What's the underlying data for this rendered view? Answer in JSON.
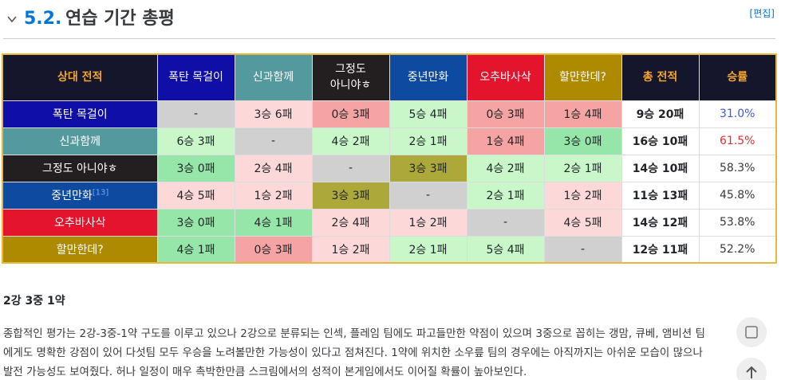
{
  "section": {
    "number": "5.2.",
    "title": "연습 기간 총평",
    "edit_label": "[편집]"
  },
  "table": {
    "headers": [
      {
        "label": "상대 전적",
        "bg": "#15152b",
        "fg": "#f3a72b",
        "bold": true
      },
      {
        "label": "폭탄 목걸이",
        "bg": "#0f0fa8",
        "fg": "#ffffff"
      },
      {
        "label": "신과함께",
        "bg": "#54999d",
        "fg": "#ffffff"
      },
      {
        "label": "그정도\n아니야ㅎ",
        "bg": "#231f20",
        "fg": "#ffffff"
      },
      {
        "label": "중년만화",
        "bg": "#0e4ba0",
        "fg": "#ffffff"
      },
      {
        "label": "오추바사삭",
        "bg": "#e3142c",
        "fg": "#ffffff"
      },
      {
        "label": "할만한데?",
        "bg": "#ad8a00",
        "fg": "#ffffff"
      },
      {
        "label": "총 전적",
        "bg": "#15152b",
        "fg": "#f3a72b",
        "bold": true
      },
      {
        "label": "승률",
        "bg": "#15152b",
        "fg": "#f3a72b",
        "bold": true
      }
    ],
    "rows": [
      {
        "team": "폭탄 목걸이",
        "team_bg": "#0f0fa8",
        "cells": [
          {
            "text": "-",
            "bg": "#d0d0d0"
          },
          {
            "text": "3승 6패",
            "bg": "#fdd8d8"
          },
          {
            "text": "0승 3패",
            "bg": "#f5a3a3"
          },
          {
            "text": "5승 4패",
            "bg": "#c9f7c9"
          },
          {
            "text": "0승 3패",
            "bg": "#f5a3a3"
          },
          {
            "text": "1승 4패",
            "bg": "#f5a3a3"
          }
        ],
        "total": "9승 20패",
        "rate": "31.0%",
        "rate_color": "#3b5bdb"
      },
      {
        "team": "신과함께",
        "team_bg": "#54999d",
        "cells": [
          {
            "text": "6승 3패",
            "bg": "#c9f7c9"
          },
          {
            "text": "-",
            "bg": "#d0d0d0"
          },
          {
            "text": "4승 2패",
            "bg": "#c9f7c9"
          },
          {
            "text": "2승 1패",
            "bg": "#c9f7c9"
          },
          {
            "text": "1승 4패",
            "bg": "#f5a3a3"
          },
          {
            "text": "3승 0패",
            "bg": "#95e6a8"
          }
        ],
        "total": "16승 10패",
        "rate": "61.5%",
        "rate_color": "#e03131"
      },
      {
        "team": "그정도 아니야ㅎ",
        "team_bg": "#231f20",
        "cells": [
          {
            "text": "3승 0패",
            "bg": "#95e6a8"
          },
          {
            "text": "2승 4패",
            "bg": "#fdd8d8"
          },
          {
            "text": "-",
            "bg": "#d0d0d0"
          },
          {
            "text": "3승 3패",
            "bg": "#aca93a"
          },
          {
            "text": "4승 2패",
            "bg": "#c9f7c9"
          },
          {
            "text": "2승 1패",
            "bg": "#c9f7c9"
          }
        ],
        "total": "14승 10패",
        "rate": "58.3%",
        "rate_color": "#373a3c"
      },
      {
        "team": "중년만화",
        "team_bg": "#0e4ba0",
        "team_note": "[13]",
        "cells": [
          {
            "text": "4승 5패",
            "bg": "#fdd8d8"
          },
          {
            "text": "1승 2패",
            "bg": "#fdd8d8"
          },
          {
            "text": "3승 3패",
            "bg": "#aca93a"
          },
          {
            "text": "-",
            "bg": "#d0d0d0"
          },
          {
            "text": "2승 1패",
            "bg": "#c9f7c9"
          },
          {
            "text": "1승 2패",
            "bg": "#fdd8d8"
          }
        ],
        "total": "11승 13패",
        "rate": "45.8%",
        "rate_color": "#373a3c"
      },
      {
        "team": "오추바사삭",
        "team_bg": "#e3142c",
        "cells": [
          {
            "text": "3승 0패",
            "bg": "#95e6a8"
          },
          {
            "text": "4승 1패",
            "bg": "#95e6a8"
          },
          {
            "text": "2승 4패",
            "bg": "#fdd8d8"
          },
          {
            "text": "1승 2패",
            "bg": "#fdd8d8"
          },
          {
            "text": "-",
            "bg": "#d0d0d0"
          },
          {
            "text": "4승 5패",
            "bg": "#fdd8d8"
          }
        ],
        "total": "14승 12패",
        "rate": "53.8%",
        "rate_color": "#373a3c"
      },
      {
        "team": "할만한데?",
        "team_bg": "#ad8a00",
        "cells": [
          {
            "text": "4승 1패",
            "bg": "#95e6a8"
          },
          {
            "text": "0승 3패",
            "bg": "#f5a3a3"
          },
          {
            "text": "1승 2패",
            "bg": "#fdd8d8"
          },
          {
            "text": "2승 1패",
            "bg": "#c9f7c9"
          },
          {
            "text": "5승 4패",
            "bg": "#c9f7c9"
          },
          {
            "text": "-",
            "bg": "#d0d0d0"
          }
        ],
        "total": "12승 11패",
        "rate": "52.2%",
        "rate_color": "#373a3c"
      }
    ]
  },
  "summary": {
    "title": "2강 3중 1약",
    "lines": [
      "종합적인 평가는 2강-3중-1약 구도를 이루고 있으나 2강으로 분류되는 인섹, 플레임 팀에도 파고들만한 약점이 있으며 3중으로 꼽히는 갱맘, 큐베, 앰비션 팀",
      "에게도 명확한 강점이 있어 다섯팀 모두 우승을 노려볼만한 가능성이 있다고 점쳐진다. 1약에 위치한 소우릎 팀의 경우에는 아직까지는 아쉬운 모습이 많으나",
      "발전 가능성도 보여줬다. 허나 일정이 매우 촉박한만큼 스크림에서의 성적이 본게임에서도 이어질 확률이 높아보인다."
    ]
  }
}
